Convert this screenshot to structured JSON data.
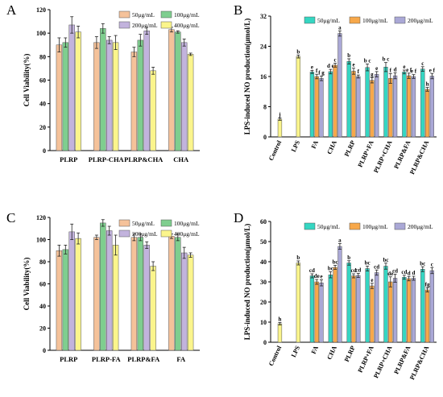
{
  "chart_data": [
    {
      "panel": "A",
      "type": "bar",
      "ylabel": "Cell Viability(%)",
      "ylim": [
        0,
        120
      ],
      "yticks": [
        0,
        20,
        40,
        60,
        80,
        100,
        120
      ],
      "categories": [
        "PLRP",
        "PLRP-CHA",
        "PLRP&CHA",
        "CHA"
      ],
      "legend_position": "top-right",
      "series": [
        {
          "name": "50μg/mL",
          "color": "#f5c29a",
          "values": [
            90,
            92,
            84,
            103
          ],
          "errors": [
            6,
            5,
            4,
            2
          ]
        },
        {
          "name": "100μg/mL",
          "color": "#7fce8f",
          "values": [
            92,
            104,
            94,
            101
          ],
          "errors": [
            4,
            4,
            5,
            1
          ]
        },
        {
          "name": "200μg/mL",
          "color": "#c2b3dd",
          "values": [
            107,
            94,
            102,
            92
          ],
          "errors": [
            7,
            3,
            3,
            3
          ]
        },
        {
          "name": "400μg/mL",
          "color": "#fbf58c",
          "values": [
            101,
            92,
            68,
            82
          ],
          "errors": [
            5,
            6,
            3,
            1
          ]
        }
      ]
    },
    {
      "panel": "B",
      "type": "bar",
      "ylabel": "LPS-induced NO production(μmol/L)",
      "ylim": [
        0,
        32
      ],
      "yticks": [
        0,
        8,
        16,
        24,
        32
      ],
      "categories": [
        "Control",
        "LPS",
        "FA",
        "CHA",
        "PLRP",
        "PLRP+FA",
        "PLRP+CHA",
        "PLRP&FA",
        "PLRP&CHA"
      ],
      "legend_position": "top",
      "series": [
        {
          "name": "50μg/mL",
          "color": "#35d6c2",
          "values": [
            null,
            null,
            17.2,
            17.3,
            20.0,
            18.4,
            18.5,
            17.2,
            18.0
          ],
          "errors": [
            null,
            null,
            0.4,
            0.6,
            0.7,
            0.9,
            1.2,
            0.5,
            0.6
          ],
          "labels": [
            "",
            "",
            "e",
            "d e",
            "b",
            "b c",
            "b c",
            "e",
            "c"
          ]
        },
        {
          "name": "100μg/mL",
          "color": "#f7a84a",
          "values": [
            null,
            null,
            16.0,
            19.0,
            17.4,
            15.0,
            15.5,
            16.2,
            12.6
          ],
          "errors": [
            null,
            null,
            0.6,
            0.5,
            0.8,
            0.7,
            1.3,
            0.7,
            0.5
          ],
          "labels": [
            "",
            "",
            "f",
            "c",
            "e",
            "g",
            "f",
            "e f",
            "h"
          ]
        },
        {
          "name": "200μg/mL",
          "color": "#aaa8d6",
          "values": [
            null,
            null,
            15.5,
            27.4,
            16.0,
            16.6,
            16.2,
            16.0,
            16.1
          ],
          "errors": [
            null,
            null,
            0.6,
            0.7,
            0.4,
            0.7,
            0.8,
            0.5,
            0.7
          ],
          "labels": [
            "",
            "",
            "f g",
            "a",
            "f",
            "e",
            "d",
            "e f",
            "e f"
          ]
        },
        {
          "name": "Control/LPS",
          "color": "#fbf58c",
          "legend": false,
          "values": [
            4.7,
            21.3,
            null,
            null,
            null,
            null,
            null,
            null,
            null
          ],
          "errors": [
            0.3,
            0.4,
            null,
            null,
            null,
            null,
            null,
            null,
            null
          ],
          "labels": [
            "j",
            "b",
            "",
            "",
            "",
            "",
            "",
            "",
            ""
          ]
        }
      ]
    },
    {
      "panel": "C",
      "type": "bar",
      "ylabel": "Cell Viability(%)",
      "ylim": [
        0,
        120
      ],
      "yticks": [
        0,
        20,
        40,
        60,
        80,
        100,
        120
      ],
      "categories": [
        "PLRP",
        "PLRP-FA",
        "PLRP&FA",
        "FA"
      ],
      "legend_position": "top-right",
      "series": [
        {
          "name": "50μg/mL",
          "color": "#f5c29a",
          "values": [
            90,
            102,
            102,
            103
          ],
          "errors": [
            5,
            2,
            3,
            2
          ]
        },
        {
          "name": "100μg/mL",
          "color": "#7fce8f",
          "values": [
            91,
            115,
            102,
            102
          ],
          "errors": [
            4,
            3,
            3,
            3
          ]
        },
        {
          "name": "200μg/mL",
          "color": "#c2b3dd",
          "values": [
            107,
            108,
            95,
            88
          ],
          "errors": [
            7,
            4,
            3,
            5
          ]
        },
        {
          "name": "400μg/mL",
          "color": "#fbf58c",
          "values": [
            101,
            95,
            76,
            86
          ],
          "errors": [
            5,
            9,
            4,
            2
          ]
        }
      ]
    },
    {
      "panel": "D",
      "type": "bar",
      "ylabel": "LPS-induced NO production(μmol/L)",
      "ylim": [
        0,
        60
      ],
      "yticks": [
        0,
        10,
        20,
        30,
        40,
        50,
        60
      ],
      "categories": [
        "Control",
        "LPS",
        "FA",
        "CHA",
        "PLRP",
        "PLRP+FA",
        "PLRP+CHA",
        "PLRP&FA",
        "PLRP&CHA"
      ],
      "legend_position": "top",
      "series": [
        {
          "name": "50μg/mL",
          "color": "#35d6c2",
          "values": [
            null,
            null,
            33.0,
            33.5,
            39.4,
            36.6,
            37.8,
            32.3,
            36.3
          ],
          "errors": [
            null,
            null,
            1.0,
            1.5,
            1.1,
            1.2,
            1.5,
            1.0,
            1.2
          ],
          "labels": [
            "",
            "",
            "cd",
            "bc",
            "b",
            "bc",
            "bc",
            "cd",
            "bc"
          ]
        },
        {
          "name": "100μg/mL",
          "color": "#f7a84a",
          "values": [
            null,
            null,
            30.0,
            37.2,
            33.0,
            28.0,
            30.0,
            31.6,
            26.0
          ],
          "errors": [
            null,
            null,
            1.2,
            1.0,
            1.0,
            1.3,
            2.5,
            1.1,
            1.0
          ],
          "labels": [
            "",
            "",
            "de",
            "bc",
            "cd",
            "e",
            "de",
            "d",
            "fg"
          ]
        },
        {
          "name": "200μg/mL",
          "color": "#aaa8d6",
          "values": [
            null,
            null,
            29.5,
            47.6,
            33.2,
            34.6,
            31.8,
            31.8,
            35.6
          ],
          "errors": [
            null,
            null,
            1.5,
            1.4,
            1.0,
            1.3,
            2.0,
            1.0,
            1.5
          ],
          "labels": [
            "",
            "",
            "e",
            "a",
            "cd",
            "cd",
            "cd",
            "d",
            "c"
          ]
        },
        {
          "name": "Control/LPS",
          "color": "#fbf58c",
          "legend": false,
          "values": [
            9.2,
            39.4,
            null,
            null,
            null,
            null,
            null,
            null,
            null
          ],
          "errors": [
            0.6,
            1.0,
            null,
            null,
            null,
            null,
            null,
            null,
            null
          ],
          "labels": [
            "h",
            "b",
            "",
            "",
            "",
            "",
            "",
            "",
            ""
          ]
        }
      ]
    }
  ]
}
